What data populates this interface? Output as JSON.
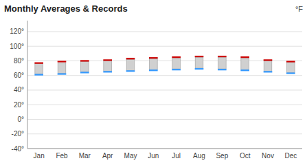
{
  "chart_data": {
    "type": "range_bar",
    "title": "Monthly Averages & Records",
    "y_label": "°F",
    "categories": [
      "Jan",
      "Feb",
      "Mar",
      "Apr",
      "May",
      "Jun",
      "Jul",
      "Aug",
      "Sep",
      "Oct",
      "Nov",
      "Dec"
    ],
    "series": [
      {
        "type": "range_bar",
        "color": "#d0d0d0",
        "low": [
          62,
          63,
          65,
          66,
          67,
          68,
          69,
          70,
          69,
          68,
          66,
          64
        ],
        "high": [
          76,
          77,
          79,
          80,
          82,
          83,
          84,
          85,
          85,
          84,
          80,
          78
        ]
      },
      {
        "type": "tick",
        "color": "#cc0000",
        "values": [
          77,
          79,
          80,
          81,
          83,
          84,
          85,
          86,
          86,
          85,
          81,
          79
        ]
      },
      {
        "type": "tick",
        "color": "#3399ff",
        "values": [
          61,
          62,
          64,
          65,
          66,
          67,
          68,
          69,
          68,
          67,
          65,
          63
        ]
      }
    ],
    "ylim": [
      -40,
      135
    ],
    "yticks": [
      {
        "value": -40,
        "label": "-40°"
      },
      {
        "value": -20,
        "label": "-20°"
      },
      {
        "value": 0,
        "label": "0°"
      },
      {
        "value": 20,
        "label": "20°"
      },
      {
        "value": 40,
        "label": "40°"
      },
      {
        "value": 60,
        "label": "60°"
      },
      {
        "value": 80,
        "label": "80°"
      },
      {
        "value": 100,
        "label": "100°"
      },
      {
        "value": 120,
        "label": "120°"
      }
    ],
    "grid": true
  }
}
